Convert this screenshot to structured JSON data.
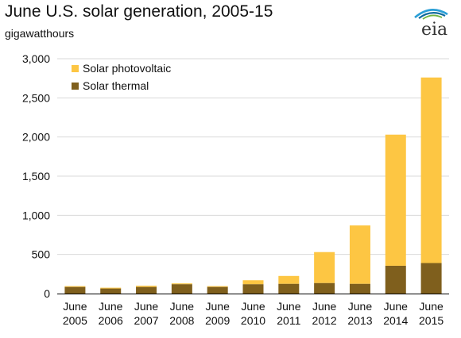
{
  "chart_data": {
    "type": "bar",
    "stacked": true,
    "title": "June U.S. solar generation, 2005-15",
    "ylabel": "gigawatthours",
    "xlabel": "",
    "categories": [
      [
        "June",
        "2005"
      ],
      [
        "June",
        "2006"
      ],
      [
        "June",
        "2007"
      ],
      [
        "June",
        "2008"
      ],
      [
        "June",
        "2009"
      ],
      [
        "June",
        "2010"
      ],
      [
        "June",
        "2011"
      ],
      [
        "June",
        "2012"
      ],
      [
        "June",
        "2013"
      ],
      [
        "June",
        "2014"
      ],
      [
        "June",
        "2015"
      ]
    ],
    "series": [
      {
        "name": "Solar thermal",
        "color": "#7F5F1D",
        "values": [
          85,
          65,
          85,
          120,
          85,
          120,
          125,
          135,
          125,
          355,
          390
        ]
      },
      {
        "name": "Solar photovoltaic",
        "color": "#FDC643",
        "values": [
          10,
          10,
          15,
          10,
          10,
          50,
          100,
          395,
          745,
          1675,
          2370
        ]
      }
    ],
    "ylim": [
      0,
      3000
    ],
    "yticks": [
      0,
      500,
      1000,
      1500,
      2000,
      2500,
      3000
    ],
    "ytick_labels": [
      "0",
      "500",
      "1,000",
      "1,500",
      "2,000",
      "2,500",
      "3,000"
    ],
    "legend_order": [
      "Solar photovoltaic",
      "Solar thermal"
    ],
    "legend_position": "top-left",
    "grid": "horizontal"
  },
  "logo": {
    "text": "eia",
    "colors": [
      "#2A9FD6",
      "#0F6A9E",
      "#72B545"
    ]
  },
  "colors": {
    "grid": "#D9D9D9",
    "axis": "#000000",
    "text": "#111111"
  }
}
